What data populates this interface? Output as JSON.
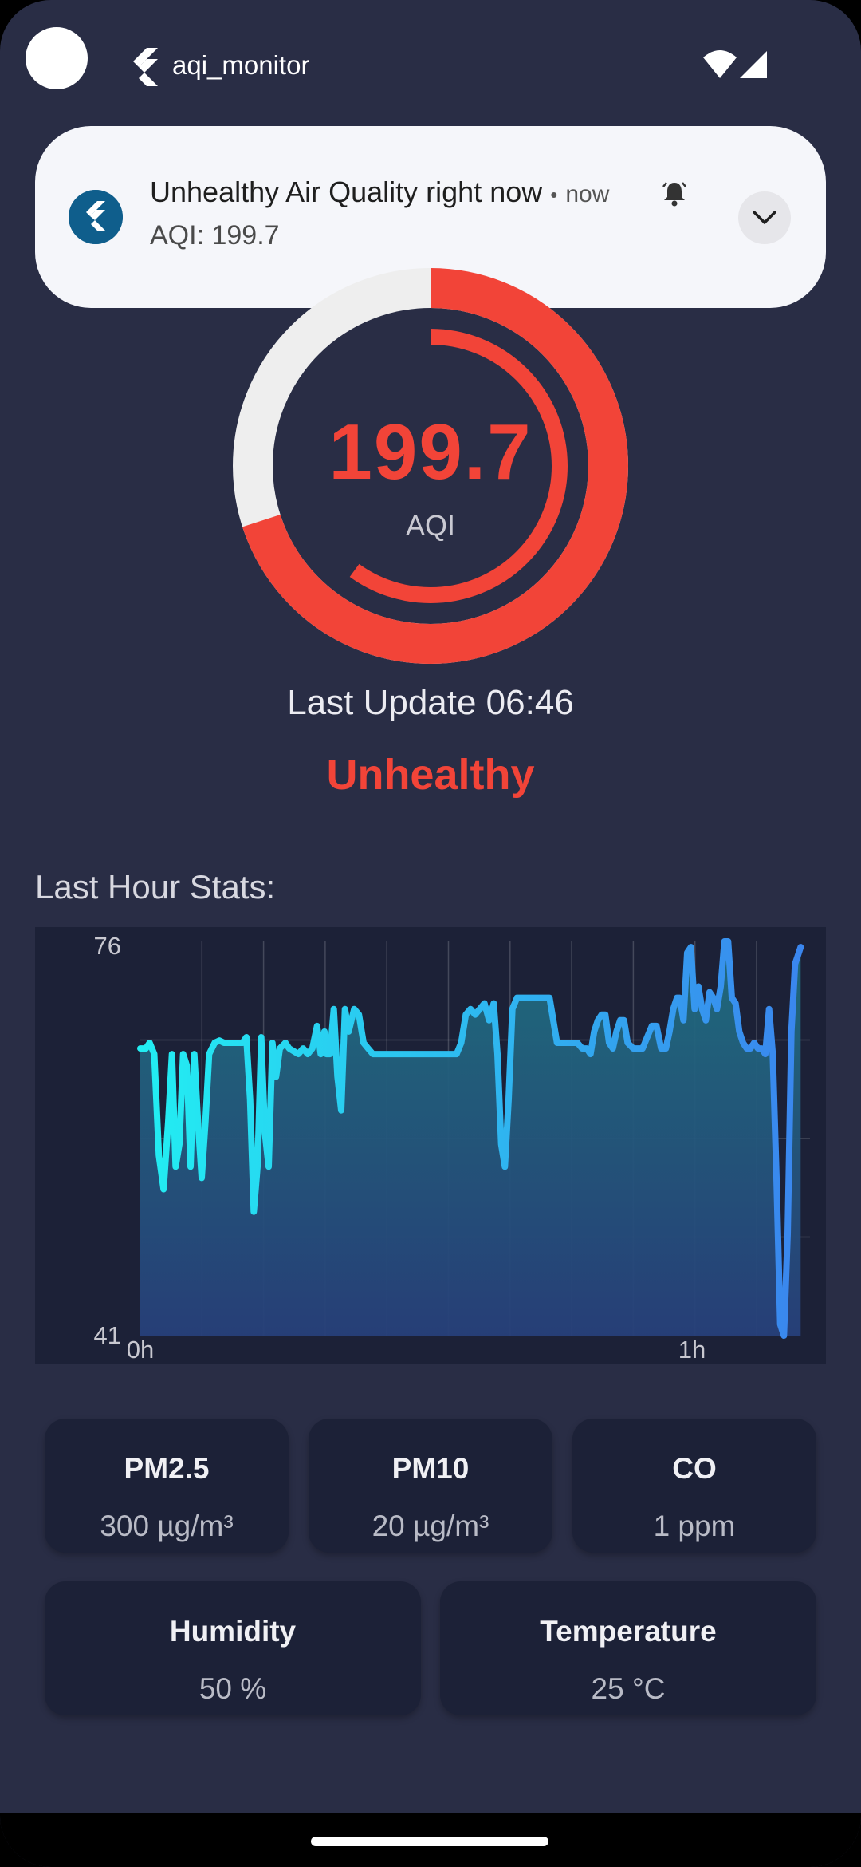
{
  "status_bar": {
    "app_name": "aqi_monitor"
  },
  "notification": {
    "title": "Unhealthy Air Quality right now",
    "separator": "•",
    "time": "now",
    "body": "AQI: 199.7"
  },
  "gauge": {
    "value": "199.7",
    "label": "AQI",
    "outer_fraction": 0.7,
    "inner_fraction": 0.6,
    "colors": {
      "active": "#f24438",
      "track": "#eeeeee"
    }
  },
  "last_update": "Last Update 06:46",
  "aqi_status": "Unhealthy",
  "stats_section": {
    "title": "Last Hour Stats:"
  },
  "chart_data": {
    "type": "area",
    "ylim": [
      41,
      76
    ],
    "y_ticks": [
      "76",
      "41"
    ],
    "x_ticks": [
      {
        "label": "0h",
        "t": 0
      },
      {
        "label": "1h",
        "t": 60
      }
    ],
    "x_range": [
      0,
      72
    ],
    "gradient": [
      "#22eef2",
      "#3a86ee"
    ],
    "points": [
      [
        0,
        66.5
      ],
      [
        0.6,
        66.5
      ],
      [
        1,
        67
      ],
      [
        1.5,
        66
      ],
      [
        2,
        57
      ],
      [
        2.5,
        54
      ],
      [
        3,
        60
      ],
      [
        3.4,
        66
      ],
      [
        3.8,
        56
      ],
      [
        4.2,
        58
      ],
      [
        4.6,
        66
      ],
      [
        5,
        65
      ],
      [
        5.4,
        56
      ],
      [
        5.8,
        66
      ],
      [
        6.2,
        60
      ],
      [
        6.6,
        55
      ],
      [
        7,
        60
      ],
      [
        7.4,
        66
      ],
      [
        8,
        67
      ],
      [
        8.5,
        67.2
      ],
      [
        9,
        67
      ],
      [
        10,
        67
      ],
      [
        11,
        67
      ],
      [
        11.4,
        67.5
      ],
      [
        11.8,
        62
      ],
      [
        12.2,
        52
      ],
      [
        12.6,
        56
      ],
      [
        13,
        67.5
      ],
      [
        13.4,
        59
      ],
      [
        13.8,
        56
      ],
      [
        14.2,
        67
      ],
      [
        14.6,
        64
      ],
      [
        15,
        66.5
      ],
      [
        15.6,
        67
      ],
      [
        16,
        66.5
      ],
      [
        17,
        66
      ],
      [
        17.5,
        66.5
      ],
      [
        18,
        66
      ],
      [
        18.5,
        66.5
      ],
      [
        19,
        68.5
      ],
      [
        19.4,
        66
      ],
      [
        19.8,
        68
      ],
      [
        20,
        66
      ],
      [
        20.4,
        66
      ],
      [
        20.8,
        70
      ],
      [
        21.2,
        64
      ],
      [
        21.6,
        61
      ],
      [
        22,
        70
      ],
      [
        22.4,
        68
      ],
      [
        23,
        70
      ],
      [
        23.5,
        69.5
      ],
      [
        24,
        67
      ],
      [
        24.5,
        66.5
      ],
      [
        25,
        66
      ],
      [
        26,
        66
      ],
      [
        28,
        66
      ],
      [
        30,
        66
      ],
      [
        32,
        66
      ],
      [
        33,
        66
      ],
      [
        34,
        66
      ],
      [
        34.5,
        67
      ],
      [
        35,
        69.5
      ],
      [
        35.5,
        70
      ],
      [
        36,
        69.5
      ],
      [
        36.5,
        70
      ],
      [
        37,
        70.5
      ],
      [
        37.5,
        69
      ],
      [
        38,
        70.5
      ],
      [
        38.4,
        66
      ],
      [
        38.8,
        58
      ],
      [
        39.2,
        56
      ],
      [
        39.6,
        62
      ],
      [
        40,
        70
      ],
      [
        40.5,
        71
      ],
      [
        41,
        71
      ],
      [
        42,
        71
      ],
      [
        43,
        71
      ],
      [
        44,
        71
      ],
      [
        44.4,
        69
      ],
      [
        44.8,
        67
      ],
      [
        45,
        67
      ],
      [
        46,
        67
      ],
      [
        47,
        67
      ],
      [
        47.5,
        66.5
      ],
      [
        48,
        66.5
      ],
      [
        48.4,
        66
      ],
      [
        48.8,
        68
      ],
      [
        49.2,
        69
      ],
      [
        49.6,
        69.5
      ],
      [
        50,
        69.5
      ],
      [
        50.4,
        67
      ],
      [
        50.8,
        66.5
      ],
      [
        51.2,
        68
      ],
      [
        51.6,
        69
      ],
      [
        52,
        69
      ],
      [
        52.4,
        67
      ],
      [
        53,
        66.5
      ],
      [
        53.5,
        66.5
      ],
      [
        54,
        66.5
      ],
      [
        54.5,
        67.5
      ],
      [
        55,
        68.5
      ],
      [
        55.5,
        68.5
      ],
      [
        56,
        66.5
      ],
      [
        56.5,
        66.5
      ],
      [
        56.9,
        68
      ],
      [
        57.3,
        70
      ],
      [
        57.7,
        71
      ],
      [
        58,
        71
      ],
      [
        58.4,
        69
      ],
      [
        58.8,
        75
      ],
      [
        59.2,
        75.5
      ],
      [
        59.6,
        70
      ],
      [
        60,
        72
      ],
      [
        60.4,
        70
      ],
      [
        60.8,
        69
      ],
      [
        61.2,
        71.5
      ],
      [
        61.6,
        71
      ],
      [
        62,
        70
      ],
      [
        62.4,
        72
      ],
      [
        62.8,
        76
      ],
      [
        63.2,
        76
      ],
      [
        63.6,
        71
      ],
      [
        64,
        70.5
      ],
      [
        64.4,
        68
      ],
      [
        64.8,
        67
      ],
      [
        65.2,
        66.5
      ],
      [
        65.6,
        66.5
      ],
      [
        66,
        67
      ],
      [
        66.4,
        66.5
      ],
      [
        66.8,
        66.5
      ],
      [
        67.2,
        66
      ],
      [
        67.6,
        70
      ],
      [
        68,
        66
      ],
      [
        68.4,
        55
      ],
      [
        68.8,
        42
      ],
      [
        69.2,
        41
      ],
      [
        69.6,
        50
      ],
      [
        70,
        68
      ],
      [
        70.4,
        74
      ],
      [
        70.8,
        75
      ],
      [
        71,
        75.5
      ]
    ]
  },
  "stats": {
    "pm25": {
      "label": "PM2.5",
      "value": "300 µg/m³"
    },
    "pm10": {
      "label": "PM10",
      "value": "20 µg/m³"
    },
    "co": {
      "label": "CO",
      "value": "1 ppm"
    },
    "humidity": {
      "label": "Humidity",
      "value": "50 %"
    },
    "temperature": {
      "label": "Temperature",
      "value": "25 °C"
    }
  },
  "icons": {
    "app": "flutter-logo-icon",
    "wifi": "wifi-icon",
    "signal": "signal-icon",
    "bell": "bell-snooze-icon",
    "expand": "chevron-down-icon"
  }
}
